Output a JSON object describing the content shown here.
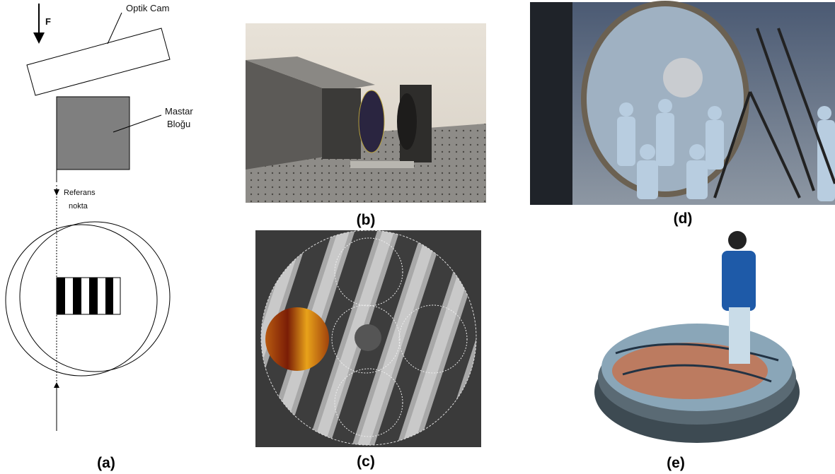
{
  "diagram": {
    "force_label": "F",
    "glass_label": "Optik Cam",
    "block_label": [
      "Mastar",
      "Bloğu"
    ],
    "reference_label": [
      "Referans",
      "nokta"
    ]
  },
  "panels": [
    "(a)",
    "(b)",
    "(c)",
    "(d)",
    "(e)"
  ]
}
